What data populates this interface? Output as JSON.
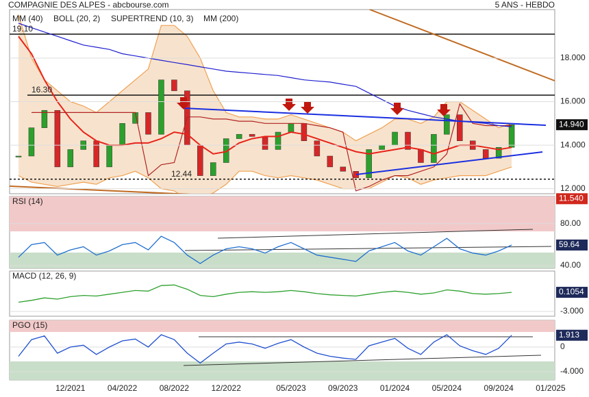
{
  "header": {
    "title": "COMPAGNIE DES ALPES - abcbourse.com",
    "period": "5 ANS - HEBDO"
  },
  "chart_data": [
    {
      "type": "candlestick",
      "color_up": "#2ca02c",
      "color_down": "#d62728",
      "x": [
        "08/2021",
        "09/2021",
        "10/2021",
        "11/2021",
        "12/2021",
        "01/2022",
        "02/2022",
        "03/2022",
        "04/2022",
        "05/2022",
        "06/2022",
        "07/2022",
        "08/2022",
        "09/2022",
        "10/2022",
        "11/2022",
        "12/2022",
        "01/2023",
        "02/2023",
        "03/2023",
        "04/2023",
        "05/2023",
        "06/2023",
        "07/2023",
        "08/2023",
        "09/2023",
        "10/2023",
        "11/2023",
        "12/2023",
        "01/2024",
        "02/2024",
        "03/2024",
        "04/2024",
        "05/2024",
        "06/2024",
        "07/2024",
        "08/2024",
        "09/2024",
        "10/2024"
      ],
      "xticks": [
        "12/2021",
        "04/2022",
        "08/2022",
        "12/2022",
        "05/2023",
        "09/2023",
        "01/2024",
        "05/2024",
        "09/2024",
        "01/2025"
      ],
      "values": [
        13.5,
        14.8,
        15.6,
        13.0,
        13.8,
        14.2,
        13.0,
        14.0,
        15.0,
        15.5,
        14.5,
        17.0,
        16.5,
        14.0,
        12.6,
        13.2,
        14.3,
        14.5,
        14.4,
        13.8,
        14.6,
        15.0,
        14.2,
        13.5,
        13.0,
        12.8,
        12.5,
        13.8,
        14.0,
        14.6,
        13.8,
        13.2,
        14.5,
        15.4,
        14.2,
        13.8,
        13.4,
        13.9,
        14.94
      ],
      "series": [
        {
          "name": "MM (40)",
          "color": "#e8231a",
          "values": [
            19.0,
            18.2,
            17.0,
            16.0,
            15.2,
            14.6,
            14.2,
            14.0,
            14.0,
            14.1,
            14.1,
            14.3,
            14.6,
            14.5,
            14.0,
            13.6,
            13.7,
            14.1,
            14.3,
            14.4,
            14.4,
            14.6,
            14.5,
            14.3,
            14.1,
            13.9,
            13.7,
            13.6,
            13.7,
            13.8,
            13.9,
            13.8,
            13.6,
            13.8,
            14.0,
            14.0,
            13.9,
            13.8,
            13.9
          ]
        },
        {
          "name": "BOLL (20, 2)",
          "color": "#f0a050",
          "values": [
            20.0,
            18.0,
            17.0,
            16.5,
            16.0,
            15.8,
            15.5,
            16.0,
            16.5,
            17.0,
            17.5,
            19.5,
            19.5,
            19.0,
            18.0,
            16.5,
            15.5,
            15.3,
            15.3,
            15.2,
            15.2,
            15.4,
            15.2,
            15.0,
            14.8,
            14.6,
            14.2,
            14.5,
            14.8,
            15.2,
            15.2,
            15.0,
            15.3,
            16.0,
            16.0,
            15.6,
            15.2,
            14.8,
            15.0
          ],
          "lower": [
            12.6,
            12.3,
            12.2,
            12.1,
            12.2,
            12.3,
            12.2,
            12.5,
            12.6,
            12.8,
            12.5,
            12.0,
            11.9,
            11.5,
            11.6,
            11.8,
            12.2,
            12.8,
            12.8,
            12.6,
            12.5,
            12.6,
            12.5,
            12.4,
            12.2,
            12.0,
            12.0,
            12.0,
            12.3,
            12.6,
            12.5,
            12.2,
            12.4,
            12.5,
            12.6,
            12.6,
            12.6,
            12.8,
            13.0
          ]
        },
        {
          "name": "SUPERTREND (10, 3)",
          "color": "#b22222",
          "values": [
            null,
            15.5,
            15.5,
            15.5,
            15.5,
            15.5,
            15.5,
            15.5,
            15.5,
            15.5,
            12.6,
            13.1,
            13.2,
            15.3,
            15.3,
            15.2,
            15.2,
            15.1,
            15.1,
            15.0,
            15.0,
            15.0,
            15.0,
            14.9,
            14.8,
            14.6,
            11.9,
            12.1,
            12.4,
            12.6,
            12.6,
            12.8,
            13.0,
            13.6,
            15.9,
            15.0,
            14.9,
            14.9,
            14.9
          ]
        },
        {
          "name": "MM (200)",
          "color": "#1f1fd0",
          "values": [
            19.6,
            19.4,
            19.2,
            19.0,
            18.8,
            18.6,
            18.5,
            18.4,
            18.2,
            18.1,
            18.0,
            17.9,
            17.8,
            17.7,
            17.6,
            17.5,
            17.4,
            17.35,
            17.3,
            17.25,
            17.2,
            17.1,
            17.0,
            16.95,
            16.9,
            16.8,
            16.7,
            16.4,
            16.1,
            15.8,
            15.6,
            15.45,
            15.3,
            15.2,
            15.1,
            15.05,
            15.0,
            14.9,
            14.85
          ]
        }
      ],
      "ylim": [
        11.77,
        20.23
      ],
      "yticks": [
        {
          "value": 12,
          "label": "12.000"
        },
        {
          "value": 14,
          "label": "14.000"
        },
        {
          "value": 16,
          "label": "16.000"
        },
        {
          "value": 18,
          "label": "18.000"
        }
      ],
      "levels": [
        {
          "value": 19.1,
          "label": "19.10"
        },
        {
          "value": 16.3,
          "label": "16.30"
        },
        {
          "value": 12.44,
          "label": "12.44"
        }
      ],
      "last_price": {
        "value": 14.94,
        "label": "14.940"
      },
      "stop": {
        "value": 11.54,
        "label": "11.540"
      }
    },
    {
      "type": "line",
      "title": "RSI (14)",
      "color": "#1f6fd0",
      "values": [
        48,
        60,
        62,
        50,
        55,
        58,
        50,
        54,
        60,
        62,
        55,
        68,
        62,
        50,
        42,
        50,
        56,
        58,
        56,
        52,
        58,
        62,
        56,
        50,
        48,
        46,
        44,
        54,
        58,
        62,
        54,
        50,
        58,
        66,
        56,
        52,
        50,
        54,
        59.64
      ],
      "ylim": [
        37.4,
        106
      ],
      "yticks": [
        {
          "value": 80,
          "label": "80.00"
        },
        {
          "value": 40,
          "label": "40.00"
        }
      ]
    },
    {
      "type": "line",
      "title": "MACD (12, 26, 9)",
      "color": "#2ca02c",
      "values": [
        -1.5,
        -1.2,
        -0.8,
        -1.0,
        -0.6,
        -0.4,
        -0.5,
        -0.2,
        0.1,
        0.4,
        0.3,
        1.2,
        1.3,
        0.6,
        -0.4,
        -0.6,
        -0.2,
        0.1,
        0.2,
        0.1,
        0.2,
        0.4,
        0.2,
        -0.1,
        -0.3,
        -0.4,
        -0.5,
        -0.2,
        0.1,
        0.3,
        0.1,
        -0.2,
        0.0,
        0.5,
        0.3,
        -0.1,
        -0.2,
        -0.1,
        0.1054
      ],
      "ylim": [
        -3.78,
        3.56
      ],
      "yticks": [
        {
          "value": -3,
          "label": "-3.000"
        }
      ]
    },
    {
      "type": "line",
      "title": "PGO (15)",
      "color": "#1f4fd0",
      "values": [
        -1.5,
        1.2,
        1.8,
        -1.0,
        0.0,
        0.3,
        -1.2,
        0.0,
        1.0,
        1.3,
        0.0,
        2.0,
        1.2,
        -1.0,
        -2.6,
        -1.0,
        0.5,
        0.8,
        0.5,
        -0.2,
        0.6,
        1.2,
        0.0,
        -1.0,
        -1.5,
        -1.8,
        -2.0,
        0.2,
        0.8,
        1.4,
        -0.2,
        -1.2,
        0.8,
        2.0,
        0.2,
        -0.6,
        -1.2,
        -0.2,
        1.913
      ],
      "ylim": [
        -5.33,
        4.33
      ],
      "yticks": [
        0,
        {
          "value": -4,
          "label": "-4.000"
        }
      ]
    }
  ]
}
